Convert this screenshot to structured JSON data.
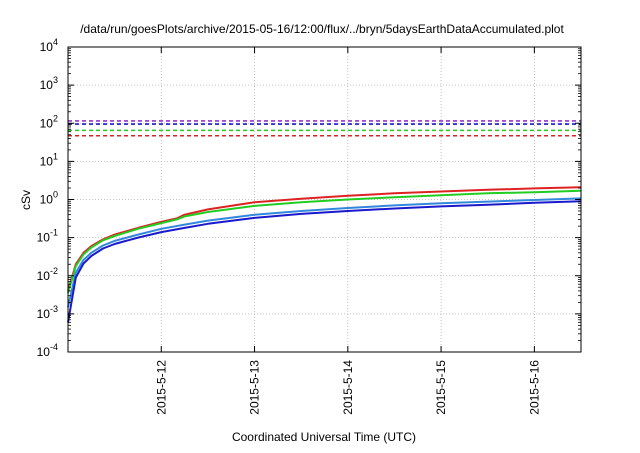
{
  "chart_data": {
    "type": "line",
    "title": "/data/run/goesPlots/archive/2015-05-16/12:00/flux/../bryn/5daysEarthDataAccumulated.plot",
    "xlabel": "Coordinated Universal Time (UTC)",
    "ylabel": "cSv",
    "y_scale": "log",
    "ylim": [
      0.0001,
      10000
    ],
    "xlim": [
      "2015-05-11T00:00",
      "2015-05-16T12:00"
    ],
    "grid": true,
    "x_ticks": [
      {
        "x": "2015-05-12T00:00",
        "label": "2015-5-12"
      },
      {
        "x": "2015-05-13T00:00",
        "label": "2015-5-13"
      },
      {
        "x": "2015-05-14T00:00",
        "label": "2015-5-14"
      },
      {
        "x": "2015-05-15T00:00",
        "label": "2015-5-15"
      },
      {
        "x": "2015-05-16T00:00",
        "label": "2015-5-16"
      }
    ],
    "y_ticks": [
      {
        "y": 0.0001,
        "base": "10",
        "exp": "-4"
      },
      {
        "y": 0.001,
        "base": "10",
        "exp": "-3"
      },
      {
        "y": 0.01,
        "base": "10",
        "exp": "-2"
      },
      {
        "y": 0.1,
        "base": "10",
        "exp": "-1"
      },
      {
        "y": 1,
        "base": "10",
        "exp": "0"
      },
      {
        "y": 10,
        "base": "10",
        "exp": "1"
      },
      {
        "y": 100,
        "base": "10",
        "exp": "2"
      },
      {
        "y": 1000,
        "base": "10",
        "exp": "3"
      },
      {
        "y": 10000,
        "base": "10",
        "exp": "4"
      }
    ],
    "reference_lines": [
      {
        "y": 115,
        "color": "#9933cc"
      },
      {
        "y": 95,
        "color": "#1a1acc"
      },
      {
        "y": 65,
        "color": "#22cc22"
      },
      {
        "y": 47,
        "color": "#dd2222"
      }
    ],
    "series": [
      {
        "color": "#dd2222",
        "points": [
          {
            "x": "2015-05-11T00:00",
            "y": 0.004
          },
          {
            "x": "2015-05-11T02:00",
            "y": 0.02
          },
          {
            "x": "2015-05-11T04:00",
            "y": 0.04
          },
          {
            "x": "2015-05-11T06:00",
            "y": 0.06
          },
          {
            "x": "2015-05-11T09:00",
            "y": 0.09
          },
          {
            "x": "2015-05-11T12:00",
            "y": 0.12
          },
          {
            "x": "2015-05-11T18:00",
            "y": 0.18
          },
          {
            "x": "2015-05-12T00:00",
            "y": 0.26
          },
          {
            "x": "2015-05-12T04:00",
            "y": 0.32
          },
          {
            "x": "2015-05-12T06:00",
            "y": 0.4
          },
          {
            "x": "2015-05-12T12:00",
            "y": 0.55
          },
          {
            "x": "2015-05-13T00:00",
            "y": 0.85
          },
          {
            "x": "2015-05-13T12:00",
            "y": 1.05
          },
          {
            "x": "2015-05-14T00:00",
            "y": 1.25
          },
          {
            "x": "2015-05-14T12:00",
            "y": 1.45
          },
          {
            "x": "2015-05-15T00:00",
            "y": 1.62
          },
          {
            "x": "2015-05-15T12:00",
            "y": 1.8
          },
          {
            "x": "2015-05-16T00:00",
            "y": 1.95
          },
          {
            "x": "2015-05-16T12:00",
            "y": 2.1
          }
        ]
      },
      {
        "color": "#22cc22",
        "points": [
          {
            "x": "2015-05-11T00:00",
            "y": 0.0035
          },
          {
            "x": "2015-05-11T02:00",
            "y": 0.018
          },
          {
            "x": "2015-05-11T04:00",
            "y": 0.036
          },
          {
            "x": "2015-05-11T06:00",
            "y": 0.055
          },
          {
            "x": "2015-05-11T09:00",
            "y": 0.085
          },
          {
            "x": "2015-05-11T12:00",
            "y": 0.11
          },
          {
            "x": "2015-05-11T18:00",
            "y": 0.17
          },
          {
            "x": "2015-05-12T00:00",
            "y": 0.24
          },
          {
            "x": "2015-05-12T04:00",
            "y": 0.3
          },
          {
            "x": "2015-05-12T06:00",
            "y": 0.36
          },
          {
            "x": "2015-05-12T12:00",
            "y": 0.47
          },
          {
            "x": "2015-05-13T00:00",
            "y": 0.68
          },
          {
            "x": "2015-05-13T12:00",
            "y": 0.85
          },
          {
            "x": "2015-05-14T00:00",
            "y": 1.0
          },
          {
            "x": "2015-05-14T12:00",
            "y": 1.15
          },
          {
            "x": "2015-05-15T00:00",
            "y": 1.3
          },
          {
            "x": "2015-05-15T12:00",
            "y": 1.45
          },
          {
            "x": "2015-05-16T00:00",
            "y": 1.55
          },
          {
            "x": "2015-05-16T12:00",
            "y": 1.7
          }
        ]
      },
      {
        "color": "#3388dd",
        "points": [
          {
            "x": "2015-05-11T00:00",
            "y": 0.0015
          },
          {
            "x": "2015-05-11T02:00",
            "y": 0.012
          },
          {
            "x": "2015-05-11T04:00",
            "y": 0.026
          },
          {
            "x": "2015-05-11T06:00",
            "y": 0.04
          },
          {
            "x": "2015-05-11T09:00",
            "y": 0.062
          },
          {
            "x": "2015-05-11T12:00",
            "y": 0.082
          },
          {
            "x": "2015-05-11T18:00",
            "y": 0.12
          },
          {
            "x": "2015-05-12T00:00",
            "y": 0.17
          },
          {
            "x": "2015-05-12T06:00",
            "y": 0.22
          },
          {
            "x": "2015-05-12T12:00",
            "y": 0.28
          },
          {
            "x": "2015-05-13T00:00",
            "y": 0.4
          },
          {
            "x": "2015-05-13T12:00",
            "y": 0.5
          },
          {
            "x": "2015-05-14T00:00",
            "y": 0.6
          },
          {
            "x": "2015-05-14T12:00",
            "y": 0.7
          },
          {
            "x": "2015-05-15T00:00",
            "y": 0.8
          },
          {
            "x": "2015-05-15T12:00",
            "y": 0.88
          },
          {
            "x": "2015-05-16T00:00",
            "y": 0.97
          },
          {
            "x": "2015-05-16T12:00",
            "y": 1.07
          }
        ]
      },
      {
        "color": "#1a1acc",
        "points": [
          {
            "x": "2015-05-11T00:00",
            "y": 0.0006
          },
          {
            "x": "2015-05-11T02:00",
            "y": 0.009
          },
          {
            "x": "2015-05-11T04:00",
            "y": 0.021
          },
          {
            "x": "2015-05-11T06:00",
            "y": 0.033
          },
          {
            "x": "2015-05-11T09:00",
            "y": 0.052
          },
          {
            "x": "2015-05-11T12:00",
            "y": 0.068
          },
          {
            "x": "2015-05-11T18:00",
            "y": 0.1
          },
          {
            "x": "2015-05-12T00:00",
            "y": 0.14
          },
          {
            "x": "2015-05-12T06:00",
            "y": 0.18
          },
          {
            "x": "2015-05-12T12:00",
            "y": 0.23
          },
          {
            "x": "2015-05-13T00:00",
            "y": 0.33
          },
          {
            "x": "2015-05-13T12:00",
            "y": 0.42
          },
          {
            "x": "2015-05-14T00:00",
            "y": 0.5
          },
          {
            "x": "2015-05-14T12:00",
            "y": 0.58
          },
          {
            "x": "2015-05-15T00:00",
            "y": 0.66
          },
          {
            "x": "2015-05-15T12:00",
            "y": 0.73
          },
          {
            "x": "2015-05-16T00:00",
            "y": 0.82
          },
          {
            "x": "2015-05-16T12:00",
            "y": 0.9
          }
        ]
      }
    ]
  }
}
